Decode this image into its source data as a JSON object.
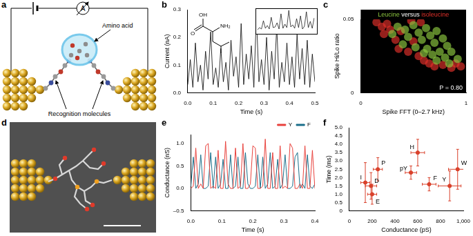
{
  "panel_a": {
    "label": "a",
    "ammeter": "A",
    "annotations": [
      "Amino acid",
      "Recognition molecules"
    ]
  },
  "panel_d": {
    "label": "d"
  },
  "chart_data": [
    {
      "panel": "b",
      "type": "line",
      "x_label": "Time (s)",
      "y_label": "Current (nA)",
      "color": "#000000",
      "grid": false,
      "x": [
        0,
        0.01,
        0.02,
        0.03,
        0.04,
        0.05,
        0.06,
        0.07,
        0.08,
        0.09,
        0.1,
        0.11,
        0.12,
        0.13,
        0.14,
        0.15,
        0.16,
        0.17,
        0.18,
        0.19,
        0.2,
        0.21,
        0.22,
        0.23,
        0.24,
        0.25,
        0.26,
        0.27,
        0.28,
        0.29,
        0.3,
        0.31,
        0.32,
        0.33,
        0.34,
        0.35,
        0.36,
        0.37,
        0.38,
        0.39,
        0.4,
        0.41,
        0.42,
        0.43,
        0.44,
        0.45,
        0.46,
        0.47,
        0.48,
        0.49,
        0.5
      ],
      "values": [
        0.03,
        0.12,
        0.02,
        0.18,
        0.04,
        0.1,
        0.01,
        0.15,
        0.05,
        0.22,
        0.03,
        0.09,
        0.02,
        0.16,
        0.04,
        0.11,
        0.01,
        0.19,
        0.06,
        0.13,
        0.02,
        0.25,
        0.03,
        0.14,
        0.05,
        0.17,
        0.02,
        0.28,
        0.04,
        0.12,
        0.03,
        0.2,
        0.01,
        0.15,
        0.05,
        0.24,
        0.02,
        0.11,
        0.04,
        0.18,
        0.03,
        0.13,
        0.02,
        0.21,
        0.05,
        0.16,
        0.03,
        0.19,
        0.02,
        0.14,
        0.04
      ],
      "xlim": [
        0,
        0.5
      ],
      "xticks": [
        {
          "value": 0,
          "label": "0.0"
        },
        0.1,
        0.2,
        0.3,
        0.4,
        0.5
      ],
      "ylim": [
        0,
        0.3
      ],
      "yticks": [
        {
          "value": 0,
          "label": "0.0"
        },
        0.1,
        0.2,
        0.3
      ],
      "annotations": [
        "OH",
        "O",
        "NH₂"
      ],
      "inset": {
        "type": "line",
        "color": "#000000",
        "tick_labels": false,
        "ylim": [
          0,
          0.3
        ],
        "values": [
          0.02,
          0.05,
          0.03,
          0.15,
          0.04,
          0.08,
          0.03,
          0.2,
          0.05,
          0.06,
          0.12,
          0.03,
          0.25,
          0.04,
          0.1,
          0.05,
          0.3,
          0.06,
          0.09,
          0.04,
          0.18,
          0.05,
          0.22,
          0.03,
          0.07,
          0.28,
          0.05,
          0.14,
          0.04,
          0.19
        ]
      }
    },
    {
      "panel": "c",
      "type": "scatter",
      "title": "Leucine versus isoleucine",
      "x_label": "Spike FFT (0–2.7 kHz)",
      "y_label": "Spike Hi/Lo ratio",
      "grid": false,
      "xlim": [
        0,
        1
      ],
      "xticks": [
        0,
        1
      ],
      "ylim": [
        0,
        0.05
      ],
      "yticks": [
        0,
        0.05
      ],
      "annotations": [
        "P = 0.80"
      ],
      "series": [
        {
          "name": "Leucine",
          "color": "#8cc63f",
          "x": [
            0.35,
            0.42,
            0.5,
            0.55,
            0.62,
            0.3,
            0.45,
            0.58,
            0.66,
            0.72,
            0.4,
            0.52,
            0.63,
            0.7,
            0.78,
            0.6,
            0.68,
            0.75,
            0.82,
            0.72,
            0.8,
            0.86,
            0.84,
            0.92
          ],
          "values": [
            0.045,
            0.043,
            0.046,
            0.041,
            0.044,
            0.04,
            0.038,
            0.036,
            0.039,
            0.042,
            0.033,
            0.031,
            0.03,
            0.034,
            0.037,
            0.027,
            0.026,
            0.028,
            0.032,
            0.022,
            0.024,
            0.028,
            0.02,
            0.023
          ]
        },
        {
          "name": "isoleucine",
          "color": "#e0302a",
          "x": [
            0.15,
            0.2,
            0.25,
            0.28,
            0.22,
            0.33,
            0.38,
            0.48,
            0.36,
            0.45,
            0.55,
            0.5,
            0.6,
            0.65,
            0.7,
            0.78,
            0.86,
            0.9,
            0.95,
            0.57
          ],
          "values": [
            0.048,
            0.045,
            0.047,
            0.043,
            0.04,
            0.036,
            0.042,
            0.049,
            0.03,
            0.028,
            0.025,
            0.035,
            0.022,
            0.02,
            0.018,
            0.019,
            0.017,
            0.02,
            0.018,
            0.048
          ]
        }
      ]
    },
    {
      "panel": "e",
      "type": "line",
      "x_label": "Time (s)",
      "y_label": "Conductance (nS)",
      "grid": false,
      "legend": "top-right",
      "xlim": [
        0,
        0.4
      ],
      "xticks": [
        {
          "value": 0,
          "label": "0.0"
        },
        0.1,
        0.2,
        0.3,
        0.4
      ],
      "ylim": [
        -0.5,
        1.2
      ],
      "yticks": [
        {
          "value": -0.5,
          "label": "–0.5"
        },
        {
          "value": 0,
          "label": "0.0"
        },
        0.5,
        {
          "value": 1,
          "label": "1.0"
        }
      ],
      "x": [
        0,
        0.008,
        0.016,
        0.024,
        0.032,
        0.04,
        0.048,
        0.056,
        0.064,
        0.072,
        0.08,
        0.088,
        0.096,
        0.104,
        0.112,
        0.12,
        0.128,
        0.136,
        0.144,
        0.152,
        0.16,
        0.168,
        0.176,
        0.184,
        0.192,
        0.2,
        0.208,
        0.216,
        0.224,
        0.232,
        0.24,
        0.248,
        0.256,
        0.264,
        0.272,
        0.28,
        0.288,
        0.296,
        0.304,
        0.312,
        0.32,
        0.328,
        0.336,
        0.344,
        0.352,
        0.36,
        0.368,
        0.376,
        0.384,
        0.392,
        0.4
      ],
      "series": [
        {
          "name": "Y",
          "color": "#e8413c",
          "values": [
            0,
            0.05,
            0.9,
            0,
            0.1,
            0,
            0.95,
            1.0,
            0,
            0.05,
            0,
            0.85,
            0,
            0,
            1.05,
            0.1,
            0,
            0,
            0.9,
            0,
            0.05,
            1.0,
            0,
            0,
            0.1,
            0.95,
            0.9,
            0,
            0,
            0.05,
            1.1,
            0,
            0,
            0.8,
            0,
            0,
            0.95,
            0,
            0.05,
            0,
            1.0,
            0.9,
            0,
            0,
            0.1,
            0,
            0.95,
            0,
            0,
            0.85,
            0
          ]
        },
        {
          "name": "F",
          "color": "#1b6f8a",
          "values": [
            0.05,
            0.7,
            0,
            0.1,
            0.75,
            0,
            0,
            0.05,
            0.8,
            0,
            0.7,
            0,
            0.1,
            0.65,
            0,
            0,
            0.75,
            0,
            0.05,
            0.7,
            0,
            0,
            0.8,
            0.1,
            0,
            0,
            0.05,
            0.75,
            0,
            0.7,
            0,
            0.1,
            0.8,
            0,
            0.05,
            0.65,
            0,
            0.1,
            0.75,
            0,
            0,
            0.05,
            0.7,
            0.8,
            0,
            0.1,
            0,
            0.75,
            0.05,
            0,
            0.1
          ]
        }
      ]
    },
    {
      "panel": "f",
      "type": "scatter",
      "x_label": "Conductance (pS)",
      "y_label": "Time (ms)",
      "grid": false,
      "color": "#d9412b",
      "xlim": [
        0,
        1000
      ],
      "xticks": [
        0,
        200,
        400,
        600,
        800,
        {
          "value": 1000,
          "label": "1,000"
        }
      ],
      "ylim": [
        0,
        5
      ],
      "yticks": [
        0,
        0.5,
        {
          "value": 1,
          "label": "1.0"
        },
        1.5,
        {
          "value": 2,
          "label": "2.0"
        },
        2.5,
        {
          "value": 3,
          "label": "3.0"
        },
        3.5,
        {
          "value": 4,
          "label": "4.0"
        },
        4.5,
        {
          "value": 5,
          "label": "5.0"
        }
      ],
      "labels": [
        "I",
        "D",
        "E",
        "P",
        "pY",
        "H",
        "F",
        "Y",
        "W"
      ],
      "x": [
        140,
        190,
        200,
        250,
        540,
        600,
        700,
        880,
        950
      ],
      "values": [
        1.7,
        1.5,
        1.0,
        2.5,
        2.3,
        3.5,
        1.6,
        1.5,
        2.5
      ],
      "xerr": [
        40,
        50,
        40,
        40,
        50,
        60,
        60,
        100,
        80
      ],
      "yerr": [
        1.2,
        0.8,
        0.6,
        0.7,
        0.4,
        0.8,
        0.4,
        0.9,
        1.2
      ]
    }
  ]
}
